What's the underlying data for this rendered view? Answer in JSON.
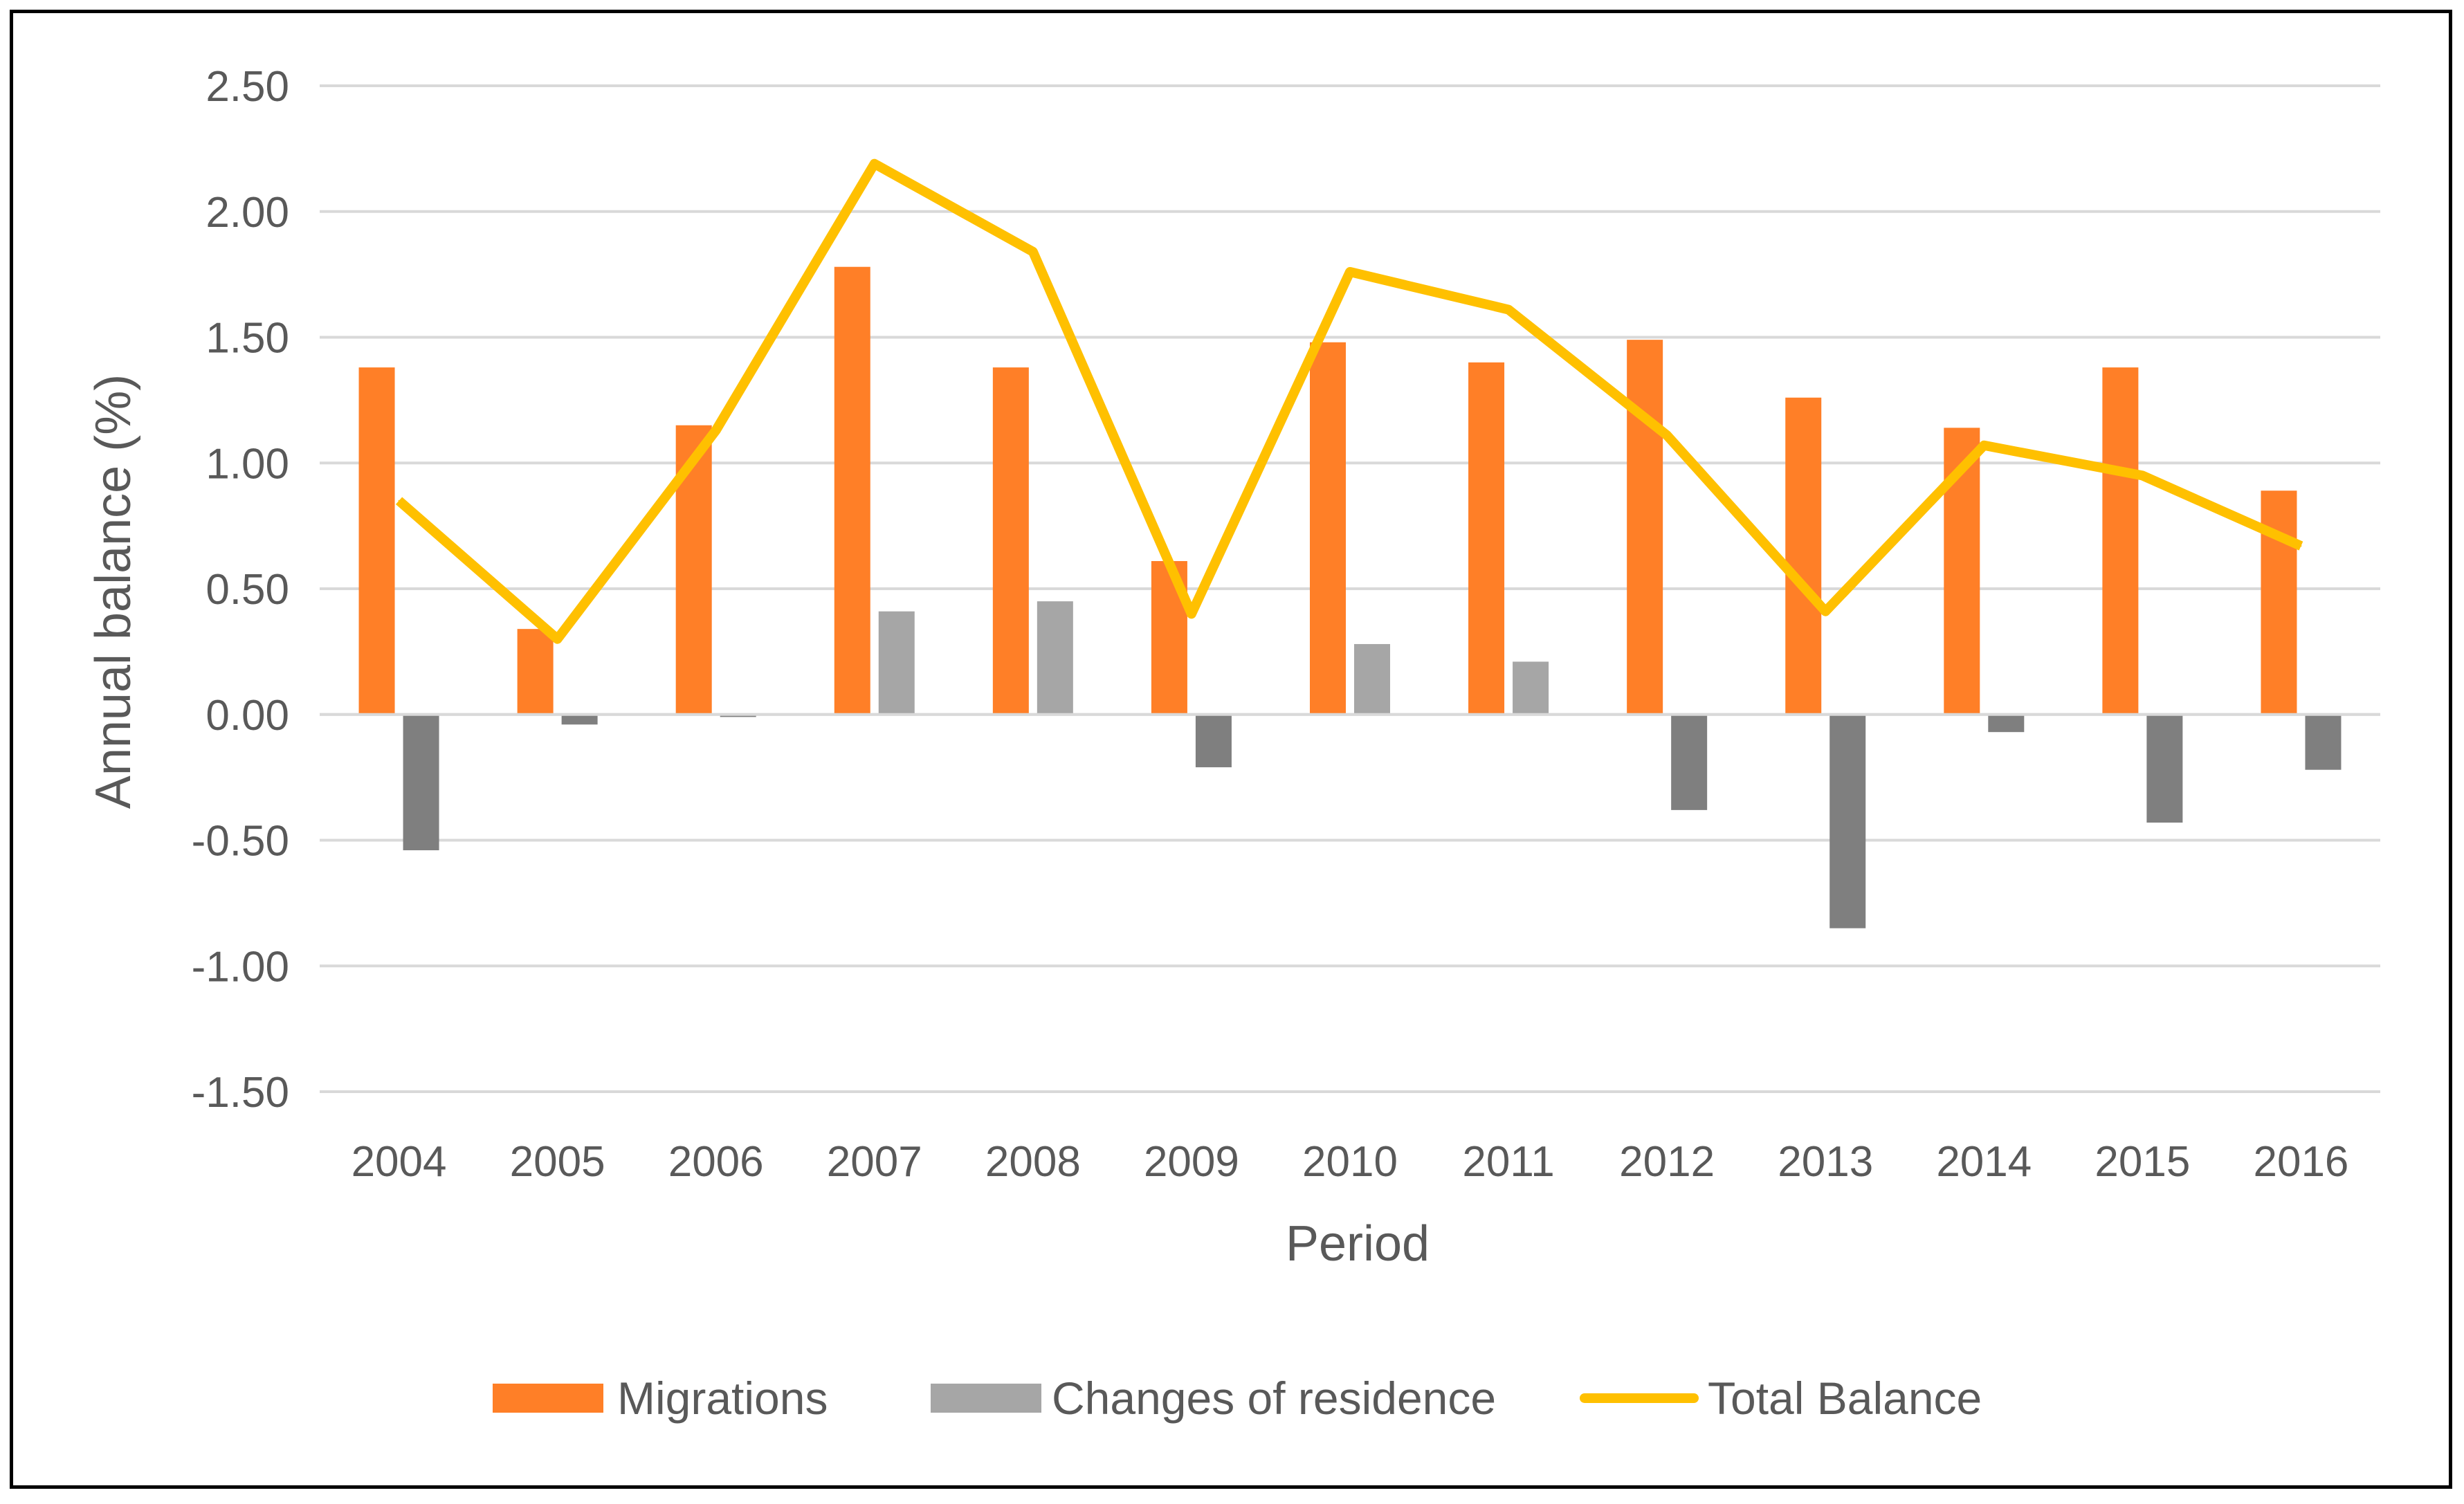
{
  "chart_data": {
    "type": "bar",
    "title": "",
    "xlabel": "Period",
    "ylabel": "Annual balance (%)",
    "ylim": [
      -1.5,
      2.5
    ],
    "ytick_step": 0.5,
    "ytick_labels": [
      "2.50",
      "2.00",
      "1.50",
      "1.00",
      "0.50",
      "0.00",
      "-0.50",
      "-1.00",
      "-1.50"
    ],
    "grid": true,
    "legend_position": "bottom-center",
    "categories": [
      "2004",
      "2005",
      "2006",
      "2007",
      "2008",
      "2009",
      "2010",
      "2011",
      "2012",
      "2013",
      "2014",
      "2015",
      "2016"
    ],
    "series": [
      {
        "name": "Migrations",
        "kind": "bar",
        "color": "#FF7F27",
        "values": [
          1.38,
          0.34,
          1.15,
          1.78,
          1.38,
          0.61,
          1.48,
          1.4,
          1.49,
          1.26,
          1.14,
          1.38,
          0.89
        ]
      },
      {
        "name": "Changes of residence",
        "kind": "bar",
        "color": "#A6A6A6",
        "negative_color": "#7F7F7F",
        "values": [
          -0.54,
          -0.04,
          -0.01,
          0.41,
          0.45,
          -0.21,
          0.28,
          0.21,
          -0.38,
          -0.85,
          -0.07,
          -0.43,
          -0.22
        ]
      },
      {
        "name": "Total Balance",
        "kind": "line",
        "color": "#FFC000",
        "values": [
          0.85,
          0.3,
          1.13,
          2.19,
          1.84,
          0.4,
          1.76,
          1.61,
          1.11,
          0.41,
          1.07,
          0.95,
          0.67
        ]
      }
    ]
  },
  "colors": {
    "grid": "#D9D9D9",
    "text": "#595959",
    "frame": "#000000"
  }
}
